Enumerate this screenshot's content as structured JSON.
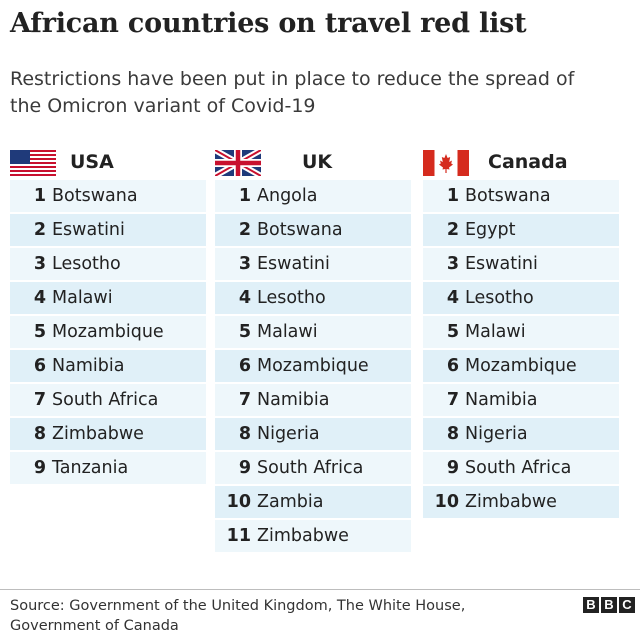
{
  "title": "African countries on travel red list",
  "subtitle": "Restrictions have been put in place to reduce the spread of the Omicron variant of Covid-19",
  "columns": [
    {
      "country": "USA",
      "flag": "us-flag-icon",
      "items": [
        {
          "num": "1",
          "name": "Botswana"
        },
        {
          "num": "2",
          "name": "Eswatini"
        },
        {
          "num": "3",
          "name": "Lesotho"
        },
        {
          "num": "4",
          "name": "Malawi"
        },
        {
          "num": "5",
          "name": "Mozambique"
        },
        {
          "num": "6",
          "name": "Namibia"
        },
        {
          "num": "7",
          "name": "South Africa"
        },
        {
          "num": "8",
          "name": "Zimbabwe"
        },
        {
          "num": "9",
          "name": "Tanzania"
        }
      ]
    },
    {
      "country": "UK",
      "flag": "uk-flag-icon",
      "items": [
        {
          "num": "1",
          "name": "Angola"
        },
        {
          "num": "2",
          "name": "Botswana"
        },
        {
          "num": "3",
          "name": "Eswatini"
        },
        {
          "num": "4",
          "name": "Lesotho"
        },
        {
          "num": "5",
          "name": "Malawi"
        },
        {
          "num": "6",
          "name": "Mozambique"
        },
        {
          "num": "7",
          "name": "Namibia"
        },
        {
          "num": "8",
          "name": "Nigeria"
        },
        {
          "num": "9",
          "name": "South Africa"
        },
        {
          "num": "10",
          "name": "Zambia"
        },
        {
          "num": "11",
          "name": "Zimbabwe"
        }
      ]
    },
    {
      "country": "Canada",
      "flag": "canada-flag-icon",
      "items": [
        {
          "num": "1",
          "name": "Botswana"
        },
        {
          "num": "2",
          "name": "Egypt"
        },
        {
          "num": "3",
          "name": "Eswatini"
        },
        {
          "num": "4",
          "name": "Lesotho"
        },
        {
          "num": "5",
          "name": "Malawi"
        },
        {
          "num": "6",
          "name": "Mozambique"
        },
        {
          "num": "7",
          "name": "Namibia"
        },
        {
          "num": "8",
          "name": "Nigeria"
        },
        {
          "num": "9",
          "name": "South Africa"
        },
        {
          "num": "10",
          "name": "Zimbabwe"
        }
      ]
    }
  ],
  "source": "Source: Government of the United Kingdom, The White House, Government of Canada",
  "logo": "BBC",
  "colors": {
    "row_light": "#eef7fb",
    "row_dark": "#e0f0f8",
    "text": "#222222"
  }
}
